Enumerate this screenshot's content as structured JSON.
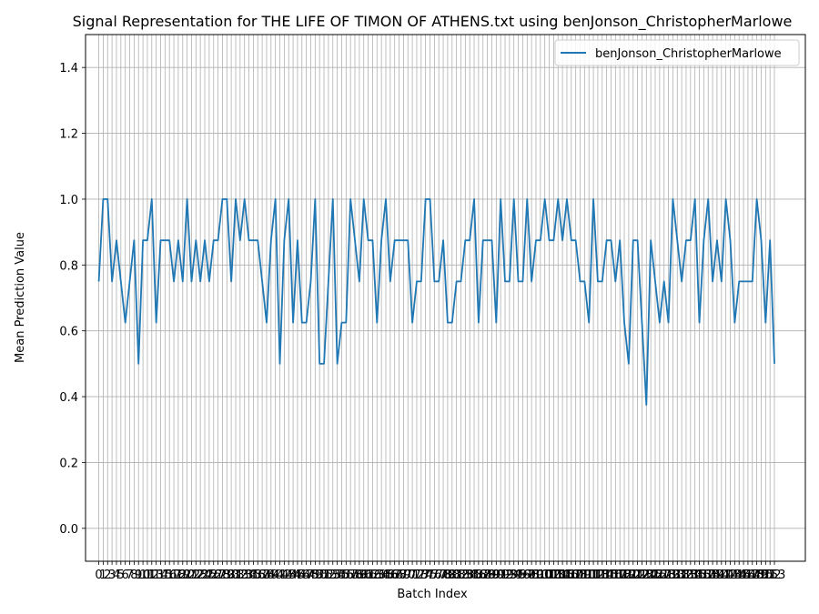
{
  "chart_data": {
    "type": "line",
    "title": "Signal Representation for THE LIFE OF TIMON OF ATHENS.txt using benJonson_ChristopherMarlowe",
    "xlabel": "Batch Index",
    "ylabel": "Mean Prediction Value",
    "ylim": [
      -0.1,
      1.5
    ],
    "yticks": [
      0.0,
      0.2,
      0.4,
      0.6,
      0.8,
      1.0,
      1.2,
      1.4
    ],
    "ytick_labels": [
      "0.0",
      "0.2",
      "0.4",
      "0.6",
      "0.8",
      "1.0",
      "1.2",
      "1.4"
    ],
    "xlim": [
      -3,
      160
    ],
    "grid": true,
    "legend_position": "top-right",
    "series": [
      {
        "name": "benJonson_ChristopherMarlowe",
        "color": "#1f77b4",
        "values": [
          0.75,
          1.0,
          1.0,
          0.75,
          0.875,
          0.75,
          0.625,
          0.75,
          0.875,
          0.5,
          0.875,
          0.875,
          1.0,
          0.625,
          0.875,
          0.875,
          0.875,
          0.75,
          0.875,
          0.75,
          1.0,
          0.75,
          0.875,
          0.75,
          0.875,
          0.75,
          0.875,
          0.875,
          1.0,
          1.0,
          0.75,
          1.0,
          0.875,
          1.0,
          0.875,
          0.875,
          0.875,
          0.75,
          0.625,
          0.875,
          1.0,
          0.5,
          0.875,
          1.0,
          0.625,
          0.875,
          0.625,
          0.625,
          0.75,
          1.0,
          0.5,
          0.5,
          0.75,
          1.0,
          0.5,
          0.625,
          0.625,
          1.0,
          0.875,
          0.75,
          1.0,
          0.875,
          0.875,
          0.625,
          0.875,
          1.0,
          0.75,
          0.875,
          0.875,
          0.875,
          0.875,
          0.625,
          0.75,
          0.75,
          1.0,
          1.0,
          0.75,
          0.75,
          0.875,
          0.625,
          0.625,
          0.75,
          0.75,
          0.875,
          0.875,
          1.0,
          0.625,
          0.875,
          0.875,
          0.875,
          0.625,
          1.0,
          0.75,
          0.75,
          1.0,
          0.75,
          0.75,
          1.0,
          0.75,
          0.875,
          0.875,
          1.0,
          0.875,
          0.875,
          1.0,
          0.875,
          1.0,
          0.875,
          0.875,
          0.75,
          0.75,
          0.625,
          1.0,
          0.75,
          0.75,
          0.875,
          0.875,
          0.75,
          0.875,
          0.625,
          0.5,
          0.875,
          0.875,
          0.625,
          0.375,
          0.875,
          0.75,
          0.625,
          0.75,
          0.625,
          1.0,
          0.875,
          0.75,
          0.875,
          0.875,
          1.0,
          0.625,
          0.875,
          1.0,
          0.75,
          0.875,
          0.75,
          1.0,
          0.875,
          0.625,
          0.75,
          0.75,
          0.75,
          0.75,
          1.0,
          0.875,
          0.625,
          0.875,
          0.5
        ]
      }
    ]
  }
}
